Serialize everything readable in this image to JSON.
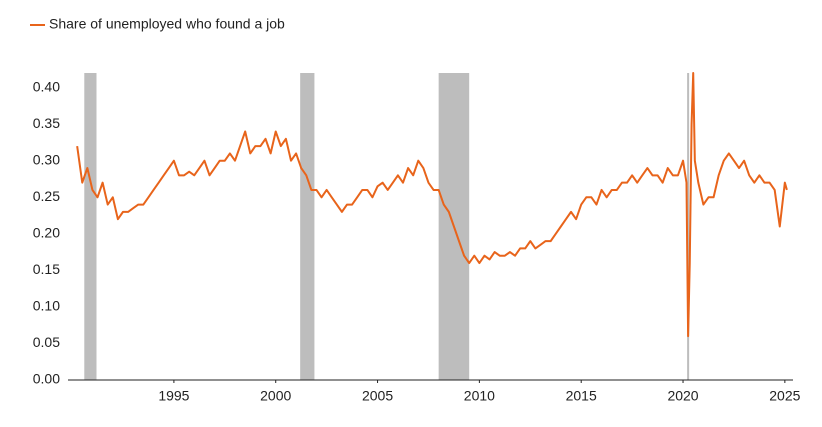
{
  "chart_data": {
    "type": "line",
    "series": [
      {
        "name": "Share of unemployed who found a job",
        "color": "#e8641b",
        "values": [
          0.32,
          0.27,
          0.29,
          0.26,
          0.25,
          0.27,
          0.24,
          0.25,
          0.22,
          0.23,
          0.23,
          0.235,
          0.24,
          0.24,
          0.25,
          0.26,
          0.27,
          0.28,
          0.29,
          0.3,
          0.28,
          0.28,
          0.285,
          0.28,
          0.29,
          0.3,
          0.28,
          0.29,
          0.3,
          0.3,
          0.31,
          0.3,
          0.32,
          0.34,
          0.31,
          0.32,
          0.32,
          0.33,
          0.31,
          0.34,
          0.32,
          0.33,
          0.3,
          0.31,
          0.29,
          0.28,
          0.26,
          0.26,
          0.25,
          0.26,
          0.25,
          0.24,
          0.23,
          0.24,
          0.24,
          0.25,
          0.26,
          0.26,
          0.25,
          0.265,
          0.27,
          0.26,
          0.27,
          0.28,
          0.27,
          0.29,
          0.28,
          0.3,
          0.29,
          0.27,
          0.26,
          0.26,
          0.24,
          0.23,
          0.21,
          0.19,
          0.17,
          0.16,
          0.17,
          0.16,
          0.17,
          0.165,
          0.175,
          0.17,
          0.17,
          0.175,
          0.17,
          0.18,
          0.18,
          0.19,
          0.18,
          0.185,
          0.19,
          0.19,
          0.2,
          0.21,
          0.22,
          0.23,
          0.22,
          0.24,
          0.25,
          0.25,
          0.24,
          0.26,
          0.25,
          0.26,
          0.26,
          0.27,
          0.27,
          0.28,
          0.27,
          0.28,
          0.29,
          0.28,
          0.28,
          0.27,
          0.29,
          0.28,
          0.28,
          0.3,
          0.27,
          0.06,
          0.16,
          0.35,
          0.42,
          0.3,
          0.27,
          0.24,
          0.25,
          0.25,
          0.28,
          0.3,
          0.31,
          0.3,
          0.29,
          0.3,
          0.28,
          0.27,
          0.28,
          0.27,
          0.27,
          0.26,
          0.21,
          0.27,
          0.26
        ]
      }
    ],
    "x": [
      1990.25,
      1990.5,
      1990.75,
      1991.0,
      1991.25,
      1991.5,
      1991.75,
      1992.0,
      1992.25,
      1992.5,
      1992.75,
      1993.0,
      1993.25,
      1993.5,
      1993.75,
      1994.0,
      1994.25,
      1994.5,
      1994.75,
      1995.0,
      1995.25,
      1995.5,
      1995.75,
      1996.0,
      1996.25,
      1996.5,
      1996.75,
      1997.0,
      1997.25,
      1997.5,
      1997.75,
      1998.0,
      1998.25,
      1998.5,
      1998.75,
      1999.0,
      1999.25,
      1999.5,
      1999.75,
      2000.0,
      2000.25,
      2000.5,
      2000.75,
      2001.0,
      2001.25,
      2001.5,
      2001.75,
      2002.0,
      2002.25,
      2002.5,
      2002.75,
      2003.0,
      2003.25,
      2003.5,
      2003.75,
      2004.0,
      2004.25,
      2004.5,
      2004.75,
      2005.0,
      2005.25,
      2005.5,
      2005.75,
      2006.0,
      2006.25,
      2006.5,
      2006.75,
      2007.0,
      2007.25,
      2007.5,
      2007.75,
      2008.0,
      2008.25,
      2008.5,
      2008.75,
      2009.0,
      2009.25,
      2009.5,
      2009.75,
      2010.0,
      2010.25,
      2010.5,
      2010.75,
      2011.0,
      2011.25,
      2011.5,
      2011.75,
      2012.0,
      2012.25,
      2012.5,
      2012.75,
      2013.0,
      2013.25,
      2013.5,
      2013.75,
      2014.0,
      2014.25,
      2014.5,
      2014.75,
      2015.0,
      2015.25,
      2015.5,
      2015.75,
      2016.0,
      2016.25,
      2016.5,
      2016.75,
      2017.0,
      2017.25,
      2017.5,
      2017.75,
      2018.0,
      2018.25,
      2018.5,
      2018.75,
      2019.0,
      2019.25,
      2019.5,
      2019.75,
      2020.0,
      2020.17,
      2020.25,
      2020.33,
      2020.42,
      2020.5,
      2020.58,
      2020.75,
      2021.0,
      2021.25,
      2021.5,
      2021.75,
      2022.0,
      2022.25,
      2022.5,
      2022.75,
      2023.0,
      2023.25,
      2023.5,
      2023.75,
      2024.0,
      2024.25,
      2024.5,
      2024.75,
      2025.0,
      2025.1
    ],
    "recessions": [
      [
        1990.6,
        1991.2
      ],
      [
        2001.2,
        2001.9
      ],
      [
        2008.0,
        2009.5
      ],
      [
        2020.2,
        2020.3
      ]
    ],
    "recession_color": "#bdbdbd",
    "xlim": [
      1989.8,
      2025.4
    ],
    "xticks": [
      1995,
      2000,
      2005,
      2010,
      2015,
      2020,
      2025
    ],
    "ylim": [
      0,
      0.42
    ],
    "yticks": [
      {
        "value": 0,
        "label": "0.00"
      },
      0.05,
      {
        "value": 0.1,
        "label": "0.10"
      },
      0.15,
      {
        "value": 0.2,
        "label": "0.20"
      },
      0.25,
      {
        "value": 0.3,
        "label": "0.30"
      },
      0.35,
      {
        "value": 0.4,
        "label": "0.40"
      }
    ],
    "grid": false,
    "legend": "top-left"
  }
}
